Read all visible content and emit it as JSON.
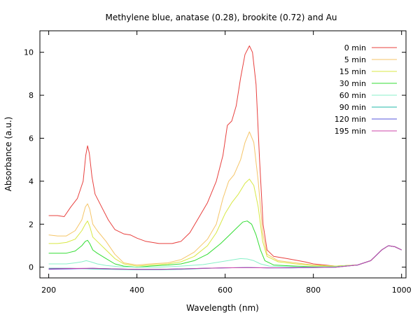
{
  "chart_data": {
    "type": "line",
    "title": "Methylene blue, anatase (0.28), brookite (0.72) and Au",
    "xlabel": "Wavelength (nm)",
    "ylabel": "Absorbance (a.u.)",
    "xlim": [
      180,
      1010
    ],
    "ylim": [
      -0.5,
      11
    ],
    "xticks": [
      200,
      400,
      600,
      800,
      1000
    ],
    "yticks": [
      0,
      2,
      4,
      6,
      8,
      10
    ],
    "grid": false,
    "legend_position": "top-right",
    "series": [
      {
        "name": "0 min",
        "color": "#e8403e",
        "points": [
          [
            200,
            2.4
          ],
          [
            210,
            2.4
          ],
          [
            220,
            2.4
          ],
          [
            235,
            2.35
          ],
          [
            250,
            2.8
          ],
          [
            265,
            3.2
          ],
          [
            278,
            4.0
          ],
          [
            284,
            5.2
          ],
          [
            288,
            5.65
          ],
          [
            292,
            5.3
          ],
          [
            298,
            4.2
          ],
          [
            305,
            3.4
          ],
          [
            320,
            2.8
          ],
          [
            335,
            2.2
          ],
          [
            350,
            1.75
          ],
          [
            370,
            1.55
          ],
          [
            385,
            1.5
          ],
          [
            400,
            1.35
          ],
          [
            420,
            1.2
          ],
          [
            450,
            1.1
          ],
          [
            480,
            1.1
          ],
          [
            500,
            1.2
          ],
          [
            520,
            1.6
          ],
          [
            540,
            2.3
          ],
          [
            560,
            3.0
          ],
          [
            580,
            4.0
          ],
          [
            595,
            5.2
          ],
          [
            605,
            6.6
          ],
          [
            615,
            6.8
          ],
          [
            625,
            7.5
          ],
          [
            635,
            8.8
          ],
          [
            645,
            9.9
          ],
          [
            655,
            10.3
          ],
          [
            662,
            10.0
          ],
          [
            670,
            8.5
          ],
          [
            678,
            5.0
          ],
          [
            686,
            2.0
          ],
          [
            695,
            0.8
          ],
          [
            710,
            0.5
          ],
          [
            740,
            0.4
          ],
          [
            780,
            0.25
          ],
          [
            800,
            0.15
          ],
          [
            850,
            0.05
          ],
          [
            900,
            0.1
          ],
          [
            930,
            0.3
          ],
          [
            955,
            0.8
          ],
          [
            970,
            1.0
          ],
          [
            985,
            0.95
          ],
          [
            1000,
            0.8
          ]
        ]
      },
      {
        "name": "5 min",
        "color": "#f5c568",
        "points": [
          [
            200,
            1.5
          ],
          [
            220,
            1.45
          ],
          [
            240,
            1.45
          ],
          [
            260,
            1.7
          ],
          [
            275,
            2.2
          ],
          [
            283,
            2.8
          ],
          [
            288,
            2.95
          ],
          [
            293,
            2.7
          ],
          [
            300,
            2.0
          ],
          [
            310,
            1.7
          ],
          [
            330,
            1.2
          ],
          [
            350,
            0.6
          ],
          [
            370,
            0.2
          ],
          [
            400,
            0.1
          ],
          [
            430,
            0.15
          ],
          [
            470,
            0.2
          ],
          [
            500,
            0.35
          ],
          [
            530,
            0.7
          ],
          [
            560,
            1.3
          ],
          [
            580,
            2.0
          ],
          [
            595,
            3.2
          ],
          [
            608,
            4.0
          ],
          [
            620,
            4.3
          ],
          [
            635,
            5.0
          ],
          [
            645,
            5.8
          ],
          [
            655,
            6.3
          ],
          [
            665,
            5.8
          ],
          [
            675,
            4.0
          ],
          [
            685,
            1.6
          ],
          [
            695,
            0.6
          ],
          [
            720,
            0.3
          ],
          [
            760,
            0.2
          ],
          [
            800,
            0.1
          ],
          [
            850,
            0.05
          ],
          [
            900,
            0.1
          ],
          [
            930,
            0.3
          ],
          [
            955,
            0.8
          ],
          [
            970,
            1.0
          ],
          [
            985,
            0.95
          ],
          [
            1000,
            0.8
          ]
        ]
      },
      {
        "name": "15 min",
        "color": "#d8e844",
        "points": [
          [
            200,
            1.1
          ],
          [
            220,
            1.1
          ],
          [
            240,
            1.15
          ],
          [
            260,
            1.3
          ],
          [
            275,
            1.7
          ],
          [
            283,
            2.0
          ],
          [
            288,
            2.15
          ],
          [
            293,
            1.9
          ],
          [
            300,
            1.4
          ],
          [
            310,
            1.2
          ],
          [
            330,
            0.8
          ],
          [
            350,
            0.4
          ],
          [
            370,
            0.15
          ],
          [
            400,
            0.05
          ],
          [
            430,
            0.1
          ],
          [
            470,
            0.15
          ],
          [
            500,
            0.25
          ],
          [
            530,
            0.5
          ],
          [
            560,
            1.0
          ],
          [
            580,
            1.6
          ],
          [
            600,
            2.5
          ],
          [
            615,
            3.0
          ],
          [
            630,
            3.4
          ],
          [
            645,
            3.9
          ],
          [
            655,
            4.1
          ],
          [
            665,
            3.8
          ],
          [
            675,
            2.8
          ],
          [
            685,
            1.2
          ],
          [
            695,
            0.5
          ],
          [
            720,
            0.25
          ],
          [
            760,
            0.15
          ],
          [
            800,
            0.08
          ],
          [
            850,
            0.05
          ],
          [
            900,
            0.1
          ],
          [
            930,
            0.3
          ],
          [
            955,
            0.8
          ],
          [
            970,
            1.0
          ],
          [
            985,
            0.95
          ],
          [
            1000,
            0.8
          ]
        ]
      },
      {
        "name": "30 min",
        "color": "#33dd33",
        "points": [
          [
            200,
            0.65
          ],
          [
            220,
            0.65
          ],
          [
            240,
            0.65
          ],
          [
            260,
            0.75
          ],
          [
            275,
            1.0
          ],
          [
            283,
            1.2
          ],
          [
            288,
            1.25
          ],
          [
            293,
            1.1
          ],
          [
            300,
            0.8
          ],
          [
            310,
            0.65
          ],
          [
            330,
            0.4
          ],
          [
            350,
            0.15
          ],
          [
            370,
            0.05
          ],
          [
            400,
            0.0
          ],
          [
            430,
            0.05
          ],
          [
            470,
            0.1
          ],
          [
            500,
            0.15
          ],
          [
            530,
            0.3
          ],
          [
            560,
            0.6
          ],
          [
            590,
            1.1
          ],
          [
            610,
            1.5
          ],
          [
            625,
            1.8
          ],
          [
            640,
            2.1
          ],
          [
            650,
            2.15
          ],
          [
            660,
            2.0
          ],
          [
            670,
            1.5
          ],
          [
            680,
            0.8
          ],
          [
            690,
            0.3
          ],
          [
            710,
            0.1
          ],
          [
            760,
            0.05
          ],
          [
            800,
            0.02
          ],
          [
            850,
            0.02
          ],
          [
            900,
            0.1
          ],
          [
            930,
            0.3
          ],
          [
            955,
            0.8
          ],
          [
            970,
            1.0
          ],
          [
            985,
            0.95
          ],
          [
            1000,
            0.8
          ]
        ]
      },
      {
        "name": "60 min",
        "color": "#88f0c8",
        "points": [
          [
            200,
            0.15
          ],
          [
            220,
            0.15
          ],
          [
            240,
            0.15
          ],
          [
            260,
            0.2
          ],
          [
            275,
            0.25
          ],
          [
            285,
            0.3
          ],
          [
            295,
            0.25
          ],
          [
            310,
            0.15
          ],
          [
            330,
            0.08
          ],
          [
            360,
            0.02
          ],
          [
            400,
            0.0
          ],
          [
            450,
            0.0
          ],
          [
            500,
            0.05
          ],
          [
            550,
            0.12
          ],
          [
            590,
            0.25
          ],
          [
            620,
            0.35
          ],
          [
            635,
            0.4
          ],
          [
            650,
            0.38
          ],
          [
            665,
            0.3
          ],
          [
            680,
            0.15
          ],
          [
            700,
            0.05
          ],
          [
            750,
            0.02
          ],
          [
            800,
            0.0
          ],
          [
            850,
            0.02
          ],
          [
            900,
            0.1
          ],
          [
            930,
            0.3
          ],
          [
            955,
            0.8
          ],
          [
            970,
            1.0
          ],
          [
            985,
            0.95
          ],
          [
            1000,
            0.8
          ]
        ]
      },
      {
        "name": "90 min",
        "color": "#22b8a8",
        "points": [
          [
            200,
            -0.05
          ],
          [
            250,
            -0.05
          ],
          [
            300,
            -0.08
          ],
          [
            350,
            -0.1
          ],
          [
            400,
            -0.12
          ],
          [
            450,
            -0.12
          ],
          [
            500,
            -0.1
          ],
          [
            550,
            -0.06
          ],
          [
            600,
            -0.03
          ],
          [
            650,
            -0.02
          ],
          [
            700,
            -0.03
          ],
          [
            750,
            -0.03
          ],
          [
            800,
            -0.02
          ],
          [
            850,
            0.0
          ],
          [
            900,
            0.1
          ],
          [
            930,
            0.3
          ],
          [
            955,
            0.8
          ],
          [
            970,
            1.0
          ],
          [
            985,
            0.95
          ],
          [
            1000,
            0.8
          ]
        ]
      },
      {
        "name": "120 min",
        "color": "#5555dd",
        "points": [
          [
            200,
            -0.1
          ],
          [
            250,
            -0.08
          ],
          [
            300,
            -0.05
          ],
          [
            350,
            -0.08
          ],
          [
            400,
            -0.1
          ],
          [
            450,
            -0.1
          ],
          [
            500,
            -0.08
          ],
          [
            550,
            -0.05
          ],
          [
            600,
            -0.03
          ],
          [
            650,
            -0.02
          ],
          [
            700,
            -0.03
          ],
          [
            750,
            -0.03
          ],
          [
            800,
            -0.02
          ],
          [
            850,
            0.0
          ],
          [
            900,
            0.1
          ],
          [
            930,
            0.3
          ],
          [
            955,
            0.8
          ],
          [
            970,
            1.0
          ],
          [
            985,
            0.95
          ],
          [
            1000,
            0.8
          ]
        ]
      },
      {
        "name": "195 min",
        "color": "#cc44aa",
        "points": [
          [
            200,
            -0.08
          ],
          [
            250,
            -0.06
          ],
          [
            300,
            -0.05
          ],
          [
            350,
            -0.08
          ],
          [
            400,
            -0.1
          ],
          [
            450,
            -0.1
          ],
          [
            500,
            -0.08
          ],
          [
            550,
            -0.05
          ],
          [
            600,
            -0.03
          ],
          [
            650,
            -0.02
          ],
          [
            700,
            -0.03
          ],
          [
            750,
            -0.02
          ],
          [
            800,
            -0.01
          ],
          [
            850,
            0.0
          ],
          [
            900,
            0.1
          ],
          [
            930,
            0.3
          ],
          [
            955,
            0.8
          ],
          [
            970,
            1.0
          ],
          [
            985,
            0.95
          ],
          [
            1000,
            0.8
          ]
        ]
      }
    ]
  }
}
